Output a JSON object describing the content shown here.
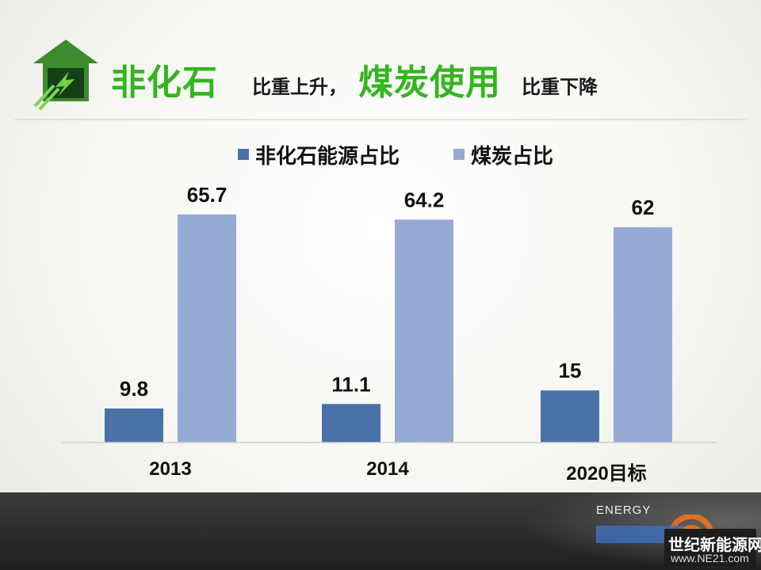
{
  "header": {
    "title_part1": "非化石",
    "title_part2": "比重上升，",
    "title_part3": "煤炭使用",
    "title_part4": "比重下降",
    "icon": "house-lightning-icon"
  },
  "colors": {
    "accent_green": "#33b51e",
    "series_dark_blue": "#4a72a8",
    "series_light_blue": "#95abd3",
    "footer": "#2a2a2a"
  },
  "chart_data": {
    "type": "bar",
    "categories": [
      "2013",
      "2014",
      "2020目标"
    ],
    "series": [
      {
        "name": "非化石能源占比",
        "values": [
          9.8,
          11.1,
          15
        ],
        "labels": [
          "9.8",
          "11.1",
          "15"
        ],
        "color": "#4a72a8"
      },
      {
        "name": "煤炭占比",
        "values": [
          65.7,
          64.2,
          62
        ],
        "labels": [
          "65.7",
          "64.2",
          "62"
        ],
        "color": "#95abd3"
      }
    ],
    "title": "",
    "xlabel": "",
    "ylabel": "",
    "ylim": [
      0,
      75
    ],
    "grid": false,
    "legend": "top-center"
  },
  "watermark": {
    "energy": "ENERGY",
    "brand_cn": "世纪新能源网",
    "url": "www.NE21.com",
    "logo_icon": "ne21-logo-icon"
  }
}
